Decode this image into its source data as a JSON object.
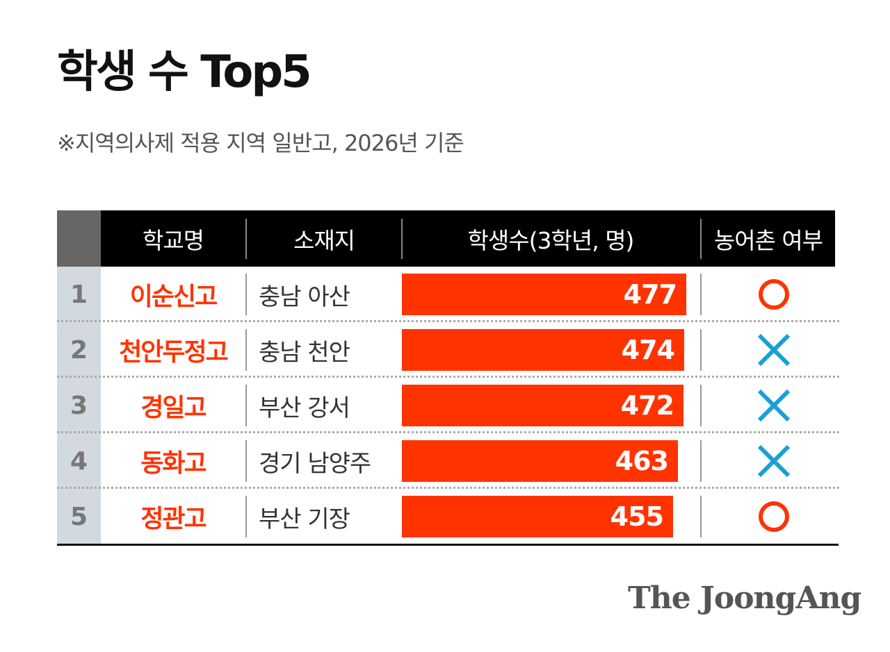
{
  "title": "학생 수 Top5",
  "subtitle": "※지역의사제 적용 지역 일반고, 2026년 기준",
  "table": {
    "headers": [
      "학교명",
      "소재지",
      "학생수(3학년, 명)",
      "농어촌 여부"
    ]
  },
  "chart_data": {
    "type": "bar",
    "categories": [
      "이순신고",
      "천안두정고",
      "경일고",
      "동화고",
      "정관고"
    ],
    "ranks": [
      "1",
      "2",
      "3",
      "4",
      "5"
    ],
    "locations": [
      "충남 아산",
      "충남 천안",
      "부산 강서",
      "경기 남양주",
      "부산 기장"
    ],
    "values": [
      477,
      474,
      472,
      463,
      455
    ],
    "rural": [
      "O",
      "X",
      "X",
      "X",
      "O"
    ],
    "ylabel": "학생수(3학년, 명)"
  },
  "colors": {
    "accent": "#ff3300",
    "circle": "#ff3300",
    "cross": "#1a9fd8",
    "header_bg": "#000000",
    "rank_bg": "#d2dadf"
  },
  "icons": {
    "yes": "circle-icon",
    "no": "cross-icon"
  },
  "brand": "The JoongAng"
}
